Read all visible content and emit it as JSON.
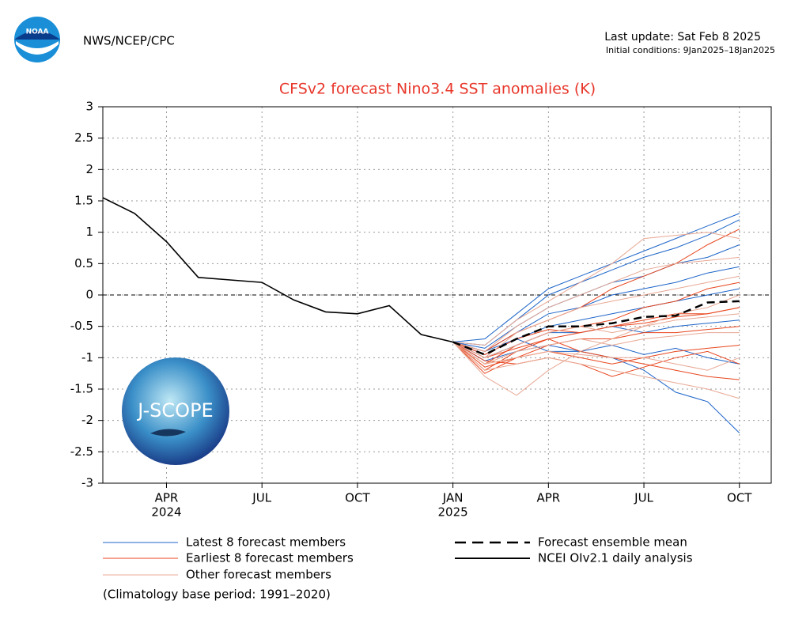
{
  "chart_data": {
    "type": "line",
    "agency": "NWS/NCEP/CPC",
    "last_update": "Last update: Sat Feb 8 2025",
    "initial_conditions": "Initial conditions: 9Jan2025–18Jan2025",
    "title": "CFSv2 forecast Nino3.4 SST anomalies (K)",
    "footnote": "(Climatology base period: 1991–2020)",
    "logos": {
      "noaa": "NOAA",
      "jscope": "J-SCOPE"
    },
    "grid": true,
    "zero_line": true,
    "xlim": [
      "2024-02",
      "2025-11"
    ],
    "ylim": [
      -3,
      3
    ],
    "yticks": [
      -3,
      -2.5,
      -2,
      -1.5,
      -1,
      -0.5,
      0,
      0.5,
      1,
      1.5,
      2,
      2.5,
      3
    ],
    "xticks": [
      {
        "value": "2024-04",
        "label": "APR"
      },
      {
        "value": "2024-07",
        "label": "JUL"
      },
      {
        "value": "2024-10",
        "label": "OCT"
      },
      {
        "value": "2025-01",
        "label": "JAN"
      },
      {
        "value": "2025-04",
        "label": "APR"
      },
      {
        "value": "2025-07",
        "label": "JUL"
      },
      {
        "value": "2025-10",
        "label": "OCT"
      }
    ],
    "year_labels": [
      {
        "value": "2024-04",
        "label": "2024"
      },
      {
        "value": "2025-01",
        "label": "2025"
      }
    ],
    "x": [
      "2025-01",
      "2025-02",
      "2025-03",
      "2025-04",
      "2025-05",
      "2025-06",
      "2025-07",
      "2025-08",
      "2025-09",
      "2025-10"
    ],
    "series": [
      {
        "name": "Latest 8 forecast members",
        "color": "#1c64c8",
        "lines": [
          [
            -0.75,
            -0.7,
            -0.3,
            0.1,
            0.3,
            0.5,
            0.7,
            0.9,
            1.1,
            1.3
          ],
          [
            -0.75,
            -0.8,
            -0.4,
            0.0,
            0.2,
            0.4,
            0.6,
            0.75,
            0.95,
            1.2
          ],
          [
            -0.75,
            -0.85,
            -0.5,
            -0.2,
            0.0,
            0.2,
            0.3,
            0.5,
            0.6,
            0.8
          ],
          [
            -0.75,
            -0.9,
            -0.6,
            -0.3,
            -0.2,
            0.0,
            0.1,
            0.2,
            0.35,
            0.45
          ],
          [
            -0.75,
            -0.95,
            -0.7,
            -0.5,
            -0.4,
            -0.3,
            -0.2,
            -0.1,
            0.0,
            0.1
          ],
          [
            -0.75,
            -1.0,
            -0.8,
            -0.6,
            -0.6,
            -0.5,
            -0.6,
            -0.5,
            -0.45,
            -0.4
          ],
          [
            -0.75,
            -1.05,
            -0.9,
            -0.8,
            -0.9,
            -0.8,
            -0.95,
            -0.85,
            -1.0,
            -1.1
          ],
          [
            -0.75,
            -0.9,
            -0.7,
            -0.9,
            -0.9,
            -1.0,
            -1.2,
            -1.55,
            -1.7,
            -2.2
          ]
        ]
      },
      {
        "name": "Earliest 8 forecast members",
        "color": "#e8461e",
        "lines": [
          [
            -0.75,
            -0.9,
            -0.6,
            -0.4,
            -0.2,
            0.1,
            0.3,
            0.5,
            0.8,
            1.05
          ],
          [
            -0.75,
            -1.1,
            -0.8,
            -0.6,
            -0.5,
            -0.4,
            -0.2,
            -0.1,
            0.1,
            0.2
          ],
          [
            -0.75,
            -1.2,
            -0.9,
            -0.7,
            -0.6,
            -0.5,
            -0.4,
            -0.3,
            -0.3,
            -0.2
          ],
          [
            -0.75,
            -1.15,
            -1.0,
            -0.8,
            -0.7,
            -0.7,
            -0.6,
            -0.6,
            -0.55,
            -0.5
          ],
          [
            -0.75,
            -1.25,
            -1.0,
            -0.9,
            -1.0,
            -1.1,
            -1.0,
            -0.9,
            -0.85,
            -0.8
          ],
          [
            -0.75,
            -1.05,
            -1.1,
            -1.0,
            -1.1,
            -1.3,
            -1.15,
            -1.0,
            -0.9,
            -1.1
          ],
          [
            -0.75,
            -1.0,
            -0.85,
            -0.7,
            -0.9,
            -1.0,
            -1.1,
            -1.2,
            -1.3,
            -1.35
          ],
          [
            -0.75,
            -0.95,
            -0.7,
            -0.55,
            -0.6,
            -0.5,
            -0.45,
            -0.35,
            -0.3,
            -0.2
          ]
        ]
      },
      {
        "name": "Other forecast members",
        "color": "#e8a894",
        "lines": [
          [
            -0.75,
            -0.8,
            -0.4,
            -0.1,
            0.2,
            0.5,
            0.9,
            0.95,
            1.0,
            0.9
          ],
          [
            -0.75,
            -0.9,
            -0.5,
            -0.2,
            0.0,
            0.2,
            0.4,
            0.5,
            0.55,
            0.6
          ],
          [
            -0.75,
            -1.0,
            -0.6,
            -0.4,
            -0.2,
            -0.1,
            0.0,
            0.1,
            0.2,
            0.3
          ],
          [
            -0.75,
            -1.3,
            -1.6,
            -1.2,
            -0.9,
            -0.7,
            -0.5,
            -0.3,
            -0.2,
            0.0
          ],
          [
            -0.75,
            -1.0,
            -0.8,
            -0.6,
            -0.5,
            -0.6,
            -0.5,
            -0.4,
            -0.35,
            -0.3
          ],
          [
            -0.75,
            -1.1,
            -0.9,
            -0.8,
            -0.7,
            -0.8,
            -0.7,
            -0.65,
            -0.6,
            -0.6
          ],
          [
            -0.75,
            -1.1,
            -1.0,
            -0.9,
            -0.95,
            -1.0,
            -1.0,
            -1.1,
            -1.2,
            -1.0
          ],
          [
            -0.75,
            -1.2,
            -1.1,
            -1.0,
            -1.1,
            -1.2,
            -1.3,
            -1.4,
            -1.5,
            -1.65
          ]
        ]
      },
      {
        "name": "Forecast ensemble mean",
        "color": "#000000",
        "dash": true,
        "values": [
          -0.75,
          -0.95,
          -0.7,
          -0.5,
          -0.5,
          -0.45,
          -0.35,
          -0.33,
          -0.12,
          -0.1
        ]
      },
      {
        "name": "NCEI OIv2.1 daily analysis",
        "color": "#000000",
        "x": [
          "2024-02",
          "2024-03",
          "2024-04",
          "2024-05",
          "2024-06",
          "2024-07",
          "2024-08",
          "2024-09",
          "2024-10",
          "2024-11",
          "2024-12",
          "2025-01"
        ],
        "values": [
          1.55,
          1.3,
          0.85,
          0.28,
          0.24,
          0.2,
          -0.08,
          -0.27,
          -0.3,
          -0.17,
          -0.63,
          -0.75
        ]
      }
    ]
  }
}
